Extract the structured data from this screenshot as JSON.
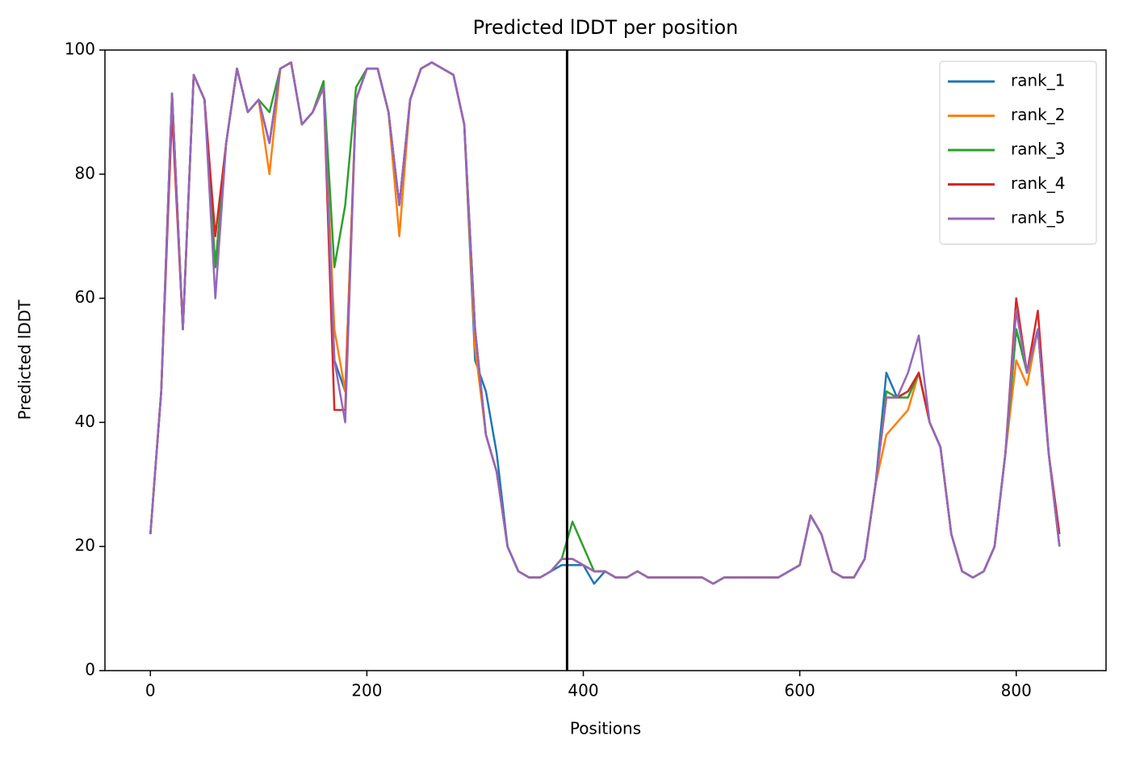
{
  "chart_data": {
    "type": "line",
    "title": "Predicted lDDT per position",
    "xlabel": "Positions",
    "ylabel": "Predicted lDDT",
    "x": [
      0,
      10,
      20,
      30,
      40,
      50,
      60,
      70,
      80,
      90,
      100,
      110,
      120,
      130,
      140,
      150,
      160,
      170,
      180,
      190,
      200,
      210,
      220,
      230,
      240,
      250,
      260,
      270,
      280,
      290,
      300,
      310,
      320,
      330,
      340,
      350,
      360,
      370,
      380,
      390,
      400,
      410,
      420,
      430,
      440,
      450,
      460,
      470,
      480,
      490,
      500,
      510,
      520,
      530,
      540,
      550,
      560,
      570,
      580,
      590,
      600,
      610,
      620,
      630,
      640,
      650,
      660,
      670,
      680,
      690,
      700,
      710,
      720,
      730,
      740,
      750,
      760,
      770,
      780,
      790,
      800,
      810,
      820,
      830,
      840
    ],
    "series": [
      {
        "name": "rank_1",
        "color": "#1f77b4",
        "values": [
          22,
          45,
          93,
          55,
          96,
          92,
          65,
          85,
          97,
          90,
          92,
          85,
          97,
          98,
          88,
          90,
          94,
          50,
          45,
          92,
          97,
          97,
          90,
          75,
          92,
          97,
          98,
          97,
          96,
          88,
          50,
          45,
          35,
          20,
          16,
          15,
          15,
          16,
          17,
          17,
          17,
          14,
          16,
          15,
          15,
          16,
          15,
          15,
          15,
          15,
          15,
          15,
          14,
          15,
          15,
          15,
          15,
          15,
          15,
          16,
          17,
          25,
          22,
          16,
          15,
          15,
          18,
          30,
          48,
          44,
          45,
          48,
          40,
          36,
          22,
          16,
          15,
          16,
          20,
          35,
          55,
          48,
          55,
          35,
          20
        ]
      },
      {
        "name": "rank_2",
        "color": "#ff7f0e",
        "values": [
          22,
          45,
          93,
          55,
          96,
          92,
          65,
          85,
          97,
          90,
          92,
          80,
          97,
          98,
          88,
          90,
          94,
          55,
          45,
          92,
          97,
          97,
          90,
          70,
          92,
          97,
          98,
          97,
          96,
          88,
          52,
          38,
          32,
          20,
          16,
          15,
          15,
          16,
          18,
          18,
          17,
          16,
          16,
          15,
          15,
          16,
          15,
          15,
          15,
          15,
          15,
          15,
          14,
          15,
          15,
          15,
          15,
          15,
          15,
          16,
          17,
          25,
          22,
          16,
          15,
          15,
          18,
          30,
          38,
          40,
          42,
          48,
          40,
          36,
          22,
          16,
          15,
          16,
          20,
          35,
          50,
          46,
          55,
          35,
          20
        ]
      },
      {
        "name": "rank_3",
        "color": "#2ca02c",
        "values": [
          22,
          45,
          93,
          55,
          96,
          92,
          65,
          85,
          97,
          90,
          92,
          90,
          97,
          98,
          88,
          90,
          95,
          65,
          75,
          94,
          97,
          97,
          90,
          75,
          92,
          97,
          98,
          97,
          96,
          88,
          55,
          38,
          32,
          20,
          16,
          15,
          15,
          16,
          18,
          24,
          20,
          16,
          16,
          15,
          15,
          16,
          15,
          15,
          15,
          15,
          15,
          15,
          14,
          15,
          15,
          15,
          15,
          15,
          15,
          16,
          17,
          25,
          22,
          16,
          15,
          15,
          18,
          30,
          45,
          44,
          44,
          48,
          40,
          36,
          22,
          16,
          15,
          16,
          20,
          35,
          55,
          48,
          55,
          35,
          20
        ]
      },
      {
        "name": "rank_4",
        "color": "#d62728",
        "values": [
          22,
          45,
          90,
          55,
          96,
          92,
          70,
          85,
          97,
          90,
          92,
          85,
          97,
          98,
          88,
          90,
          94,
          42,
          42,
          92,
          97,
          97,
          90,
          75,
          92,
          97,
          98,
          97,
          96,
          88,
          55,
          38,
          32,
          20,
          16,
          15,
          15,
          16,
          18,
          18,
          17,
          16,
          16,
          15,
          15,
          16,
          15,
          15,
          15,
          15,
          15,
          15,
          14,
          15,
          15,
          15,
          15,
          15,
          15,
          16,
          17,
          25,
          22,
          16,
          15,
          15,
          18,
          30,
          44,
          44,
          45,
          48,
          40,
          36,
          22,
          16,
          15,
          16,
          20,
          35,
          60,
          48,
          58,
          35,
          22
        ]
      },
      {
        "name": "rank_5",
        "color": "#9467bd",
        "values": [
          22,
          45,
          93,
          55,
          96,
          92,
          60,
          85,
          97,
          90,
          92,
          85,
          97,
          98,
          88,
          90,
          94,
          50,
          40,
          92,
          97,
          97,
          90,
          75,
          92,
          97,
          98,
          97,
          96,
          88,
          55,
          38,
          32,
          20,
          16,
          15,
          15,
          16,
          18,
          18,
          17,
          16,
          16,
          15,
          15,
          16,
          15,
          15,
          15,
          15,
          15,
          15,
          14,
          15,
          15,
          15,
          15,
          15,
          15,
          16,
          17,
          25,
          22,
          16,
          15,
          15,
          18,
          30,
          44,
          44,
          48,
          54,
          40,
          36,
          22,
          16,
          15,
          16,
          20,
          35,
          58,
          48,
          55,
          35,
          20
        ]
      }
    ],
    "vline": 385,
    "xlim": [
      -42,
      883
    ],
    "ylim": [
      0,
      100
    ],
    "xticks": [
      0,
      200,
      400,
      600,
      800
    ],
    "yticks": [
      0,
      20,
      40,
      60,
      80,
      100
    ],
    "legend": "upper right"
  }
}
